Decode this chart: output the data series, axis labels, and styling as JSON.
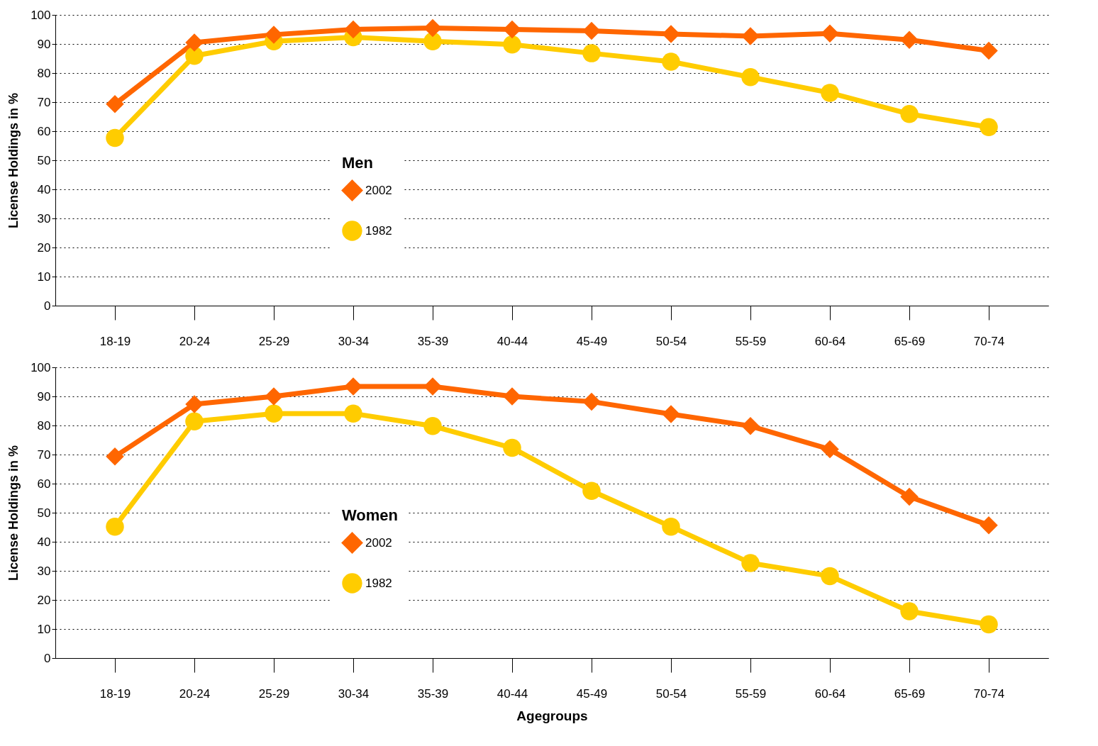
{
  "chart_data": [
    {
      "type": "line",
      "legend_title": "Men",
      "ylabel": "License Holdings in %",
      "categories": [
        "18-19",
        "20-24",
        "25-29",
        "30-34",
        "35-39",
        "40-44",
        "45-49",
        "50-54",
        "55-59",
        "60-64",
        "65-69",
        "70-74"
      ],
      "series": [
        {
          "name": "2002",
          "color": "#ff6600",
          "marker": "diamond",
          "values": [
            69.3,
            90.5,
            93.2,
            95,
            95.5,
            95,
            94.5,
            93.4,
            92.7,
            93.6,
            91.4,
            87.7
          ]
        },
        {
          "name": "1982",
          "color": "#ffcc00",
          "marker": "circle",
          "values": [
            57.7,
            85.9,
            90.9,
            92.3,
            90.9,
            89.8,
            86.8,
            83.9,
            78.6,
            73.2,
            65.9,
            61.4
          ]
        }
      ],
      "ylim": [
        0,
        100
      ],
      "yticks": [
        0,
        10,
        20,
        30,
        40,
        50,
        60,
        70,
        80,
        90,
        100
      ],
      "grid": "y",
      "legend": "left"
    },
    {
      "type": "line",
      "legend_title": "Women",
      "ylabel": "License Holdings in %",
      "xlabel": "Agegroups",
      "categories": [
        "18-19",
        "20-24",
        "25-29",
        "30-34",
        "35-39",
        "40-44",
        "45-49",
        "50-54",
        "55-59",
        "60-64",
        "65-69",
        "70-74"
      ],
      "series": [
        {
          "name": "2002",
          "color": "#ff6600",
          "marker": "diamond",
          "values": [
            69.3,
            87.3,
            90,
            93.4,
            93.4,
            90,
            88.2,
            83.9,
            79.8,
            71.8,
            55.5,
            45.7
          ]
        },
        {
          "name": "1982",
          "color": "#ffcc00",
          "marker": "circle",
          "values": [
            45.2,
            81.4,
            84.1,
            84.1,
            79.8,
            72.3,
            57.5,
            45.2,
            32.7,
            28.2,
            16.1,
            11.6
          ]
        }
      ],
      "ylim": [
        0,
        100
      ],
      "yticks": [
        0,
        10,
        20,
        30,
        40,
        50,
        60,
        70,
        80,
        90,
        100
      ],
      "grid": "y",
      "legend": "left"
    }
  ]
}
